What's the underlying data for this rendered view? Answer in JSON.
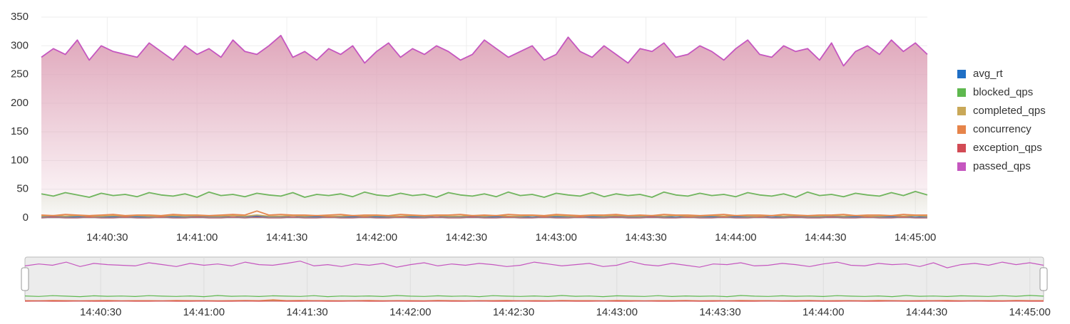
{
  "chart_data": {
    "type": "line",
    "x": [
      "14:40:08",
      "14:40:12",
      "14:40:16",
      "14:40:20",
      "14:40:24",
      "14:40:28",
      "14:40:32",
      "14:40:36",
      "14:40:40",
      "14:40:44",
      "14:40:48",
      "14:40:52",
      "14:40:56",
      "14:41:00",
      "14:41:04",
      "14:41:08",
      "14:41:12",
      "14:41:16",
      "14:41:20",
      "14:41:24",
      "14:41:28",
      "14:41:32",
      "14:41:36",
      "14:41:40",
      "14:41:44",
      "14:41:48",
      "14:41:52",
      "14:41:56",
      "14:42:00",
      "14:42:04",
      "14:42:08",
      "14:42:12",
      "14:42:16",
      "14:42:20",
      "14:42:24",
      "14:42:28",
      "14:42:32",
      "14:42:36",
      "14:42:40",
      "14:42:44",
      "14:42:48",
      "14:42:52",
      "14:42:56",
      "14:43:00",
      "14:43:04",
      "14:43:08",
      "14:43:12",
      "14:43:16",
      "14:43:20",
      "14:43:24",
      "14:43:28",
      "14:43:32",
      "14:43:36",
      "14:43:40",
      "14:43:44",
      "14:43:48",
      "14:43:52",
      "14:43:56",
      "14:44:00",
      "14:44:04",
      "14:44:08",
      "14:44:12",
      "14:44:16",
      "14:44:20",
      "14:44:24",
      "14:44:28",
      "14:44:32",
      "14:44:36",
      "14:44:40",
      "14:44:44",
      "14:44:48",
      "14:44:52",
      "14:44:56",
      "14:45:00",
      "14:45:04"
    ],
    "xlim": [
      "14:40:08",
      "14:45:04"
    ],
    "xticks": [
      "14:40:30",
      "14:41:00",
      "14:41:30",
      "14:42:00",
      "14:42:30",
      "14:43:00",
      "14:43:30",
      "14:44:00",
      "14:44:30",
      "14:45:00"
    ],
    "ylim": [
      0,
      350
    ],
    "yticks": [
      0,
      50,
      100,
      150,
      200,
      250,
      300,
      350
    ],
    "grid": true,
    "legend": "right",
    "series": [
      {
        "name": "avg_rt",
        "color": "#1f6fc5",
        "values": [
          2,
          2,
          1,
          2,
          2,
          1,
          2,
          2,
          2,
          1,
          2,
          2,
          1,
          2,
          2,
          2,
          1,
          2,
          3,
          2,
          2,
          1,
          2,
          2,
          2,
          1,
          2,
          2,
          2,
          1,
          2,
          2,
          2,
          1,
          2,
          2,
          2,
          1,
          2,
          2,
          2,
          1,
          2,
          2,
          2,
          1,
          2,
          2,
          2,
          1,
          2,
          2,
          2,
          1,
          2,
          2,
          2,
          1,
          2,
          2,
          2,
          1,
          2,
          2,
          2,
          1,
          2,
          2,
          2,
          1,
          2,
          2,
          2,
          1,
          2
        ]
      },
      {
        "name": "blocked_qps",
        "color": "#5eb84f",
        "values": [
          42,
          38,
          44,
          40,
          36,
          43,
          39,
          41,
          37,
          44,
          40,
          38,
          42,
          36,
          45,
          39,
          41,
          37,
          43,
          40,
          38,
          44,
          36,
          41,
          39,
          42,
          37,
          45,
          40,
          38,
          43,
          39,
          41,
          36,
          44,
          40,
          38,
          42,
          37,
          45,
          39,
          41,
          36,
          43,
          40,
          38,
          44,
          37,
          42,
          39,
          41,
          36,
          45,
          40,
          38,
          43,
          39,
          41,
          37,
          44,
          40,
          38,
          42,
          36,
          45,
          39,
          41,
          37,
          43,
          40,
          38,
          44,
          39,
          46,
          40
        ]
      },
      {
        "name": "completed_qps",
        "color": "#c9a858",
        "values": [
          3,
          4,
          3,
          4,
          3,
          3,
          4,
          3,
          4,
          3,
          3,
          4,
          3,
          4,
          3,
          3,
          4,
          3,
          5,
          3,
          3,
          4,
          3,
          4,
          3,
          3,
          4,
          3,
          4,
          3,
          3,
          4,
          3,
          4,
          3,
          3,
          4,
          3,
          4,
          3,
          3,
          4,
          3,
          4,
          3,
          3,
          4,
          3,
          4,
          3,
          3,
          4,
          3,
          4,
          3,
          3,
          4,
          3,
          4,
          3,
          3,
          4,
          3,
          4,
          3,
          3,
          4,
          3,
          4,
          3,
          3,
          4,
          3,
          4,
          3
        ]
      },
      {
        "name": "concurrency",
        "color": "#e6844a",
        "values": [
          5,
          4,
          6,
          5,
          4,
          5,
          6,
          4,
          5,
          5,
          4,
          6,
          5,
          5,
          4,
          5,
          6,
          5,
          12,
          5,
          6,
          5,
          5,
          4,
          5,
          6,
          4,
          5,
          5,
          4,
          6,
          5,
          4,
          5,
          5,
          6,
          4,
          5,
          4,
          6,
          5,
          5,
          4,
          6,
          5,
          4,
          5,
          5,
          6,
          4,
          5,
          4,
          6,
          5,
          5,
          4,
          5,
          6,
          4,
          5,
          5,
          4,
          6,
          5,
          4,
          5,
          5,
          6,
          4,
          5,
          5,
          4,
          6,
          5,
          5
        ]
      },
      {
        "name": "exception_qps",
        "color": "#d24b55",
        "values": [
          0,
          1,
          0,
          0,
          1,
          0,
          0,
          1,
          0,
          0,
          1,
          0,
          0,
          1,
          0,
          0,
          1,
          0,
          1,
          0,
          0,
          1,
          0,
          0,
          1,
          0,
          0,
          1,
          0,
          0,
          1,
          0,
          0,
          1,
          0,
          0,
          1,
          0,
          0,
          1,
          0,
          0,
          1,
          0,
          0,
          1,
          0,
          0,
          1,
          0,
          0,
          1,
          0,
          0,
          1,
          0,
          0,
          1,
          0,
          0,
          1,
          0,
          0,
          1,
          0,
          0,
          1,
          0,
          0,
          1,
          0,
          0,
          1,
          0,
          0
        ]
      },
      {
        "name": "passed_qps",
        "color": "#c556bf",
        "values": [
          280,
          295,
          285,
          310,
          275,
          300,
          290,
          285,
          280,
          305,
          290,
          275,
          300,
          285,
          295,
          280,
          310,
          290,
          285,
          300,
          318,
          280,
          290,
          275,
          295,
          285,
          300,
          270,
          290,
          305,
          280,
          295,
          285,
          300,
          290,
          275,
          285,
          310,
          295,
          280,
          290,
          300,
          275,
          285,
          315,
          290,
          280,
          300,
          285,
          270,
          295,
          290,
          305,
          280,
          285,
          300,
          290,
          275,
          295,
          310,
          285,
          280,
          300,
          290,
          295,
          275,
          305,
          265,
          290,
          300,
          285,
          310,
          290,
          305,
          285
        ]
      }
    ]
  }
}
